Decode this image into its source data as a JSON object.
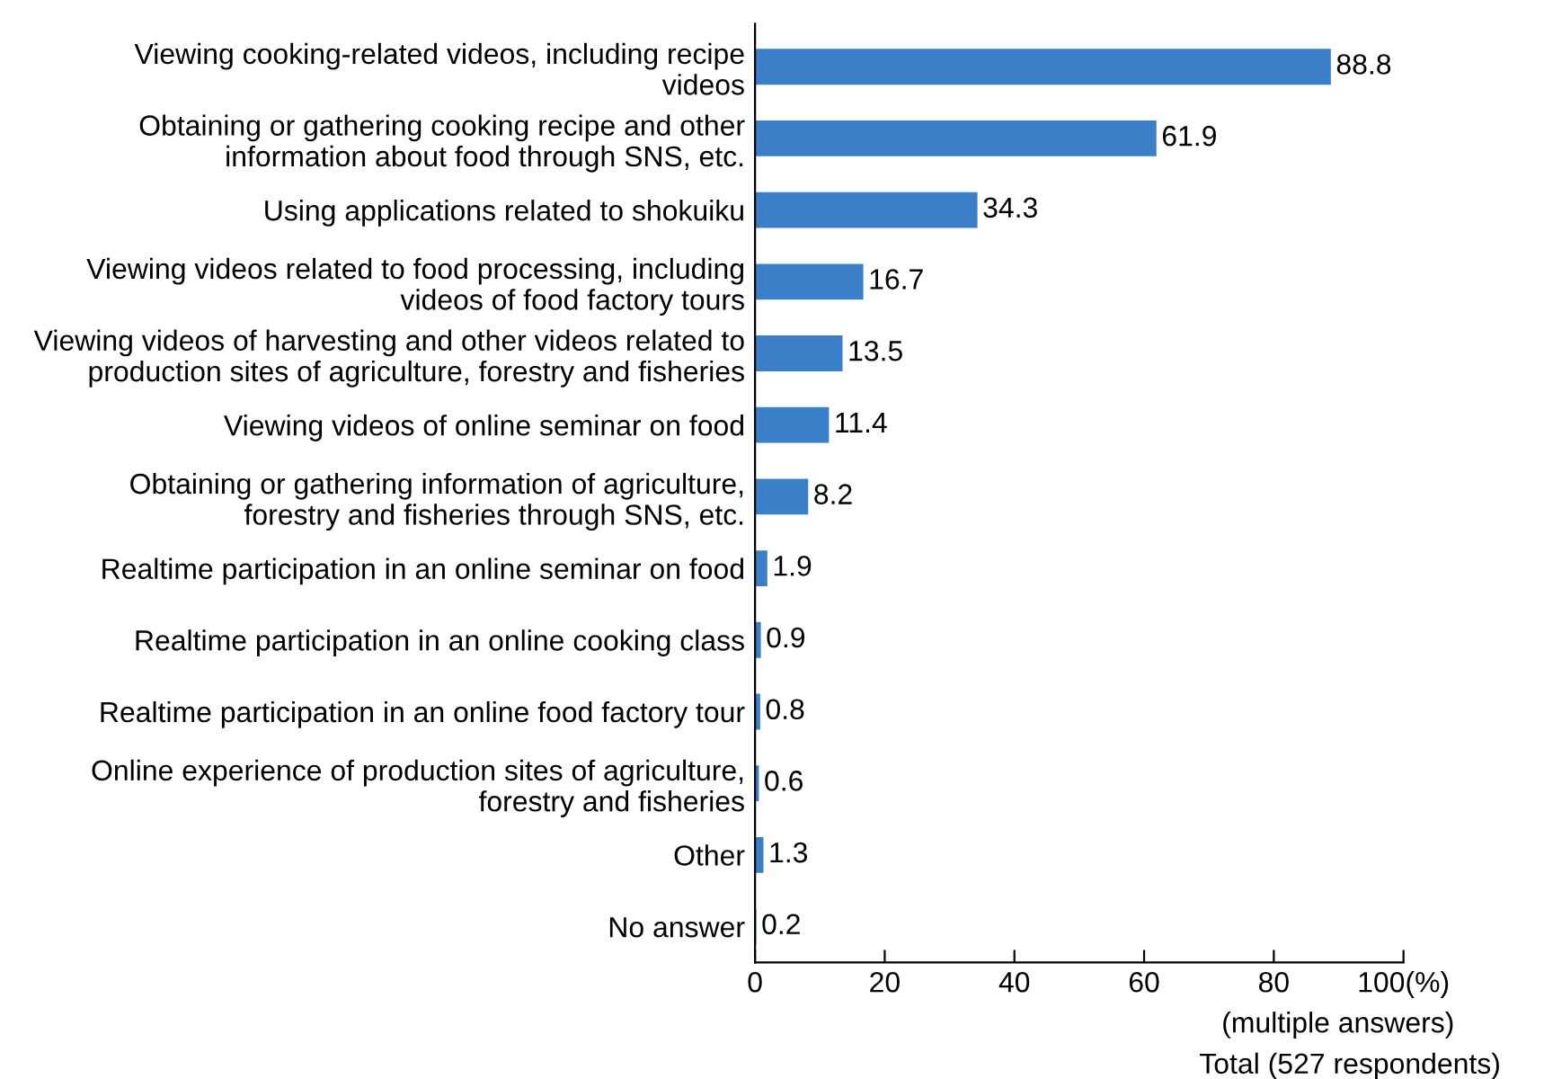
{
  "chart_data": {
    "type": "bar",
    "orientation": "horizontal",
    "categories": [
      "Viewing cooking-related videos, including recipe\nvideos",
      "Obtaining or gathering cooking recipe and other\ninformation about food through SNS, etc.",
      "Using applications related to shokuiku",
      "Viewing videos related to food processing, including\nvideos of food factory tours",
      "Viewing videos of harvesting and other videos related to\nproduction sites of agriculture, forestry and fisheries",
      "Viewing videos of online seminar on food",
      "Obtaining or gathering information of agriculture,\nforestry and fisheries through SNS, etc.",
      "Realtime participation in an online seminar on food",
      "Realtime participation in an online cooking class",
      "Realtime participation in an online food factory tour",
      "Online experience of production sites of agriculture,\nforestry and fisheries",
      "Other",
      "No answer"
    ],
    "values": [
      88.8,
      61.9,
      34.3,
      16.7,
      13.5,
      11.4,
      8.2,
      1.9,
      0.9,
      0.8,
      0.6,
      1.3,
      0.2
    ],
    "color": "#3b7fc8",
    "xlim": [
      0,
      100
    ],
    "xticks": [
      0,
      20,
      40,
      60,
      80,
      {
        "value": 100,
        "label": "100(%)"
      }
    ],
    "data_labels": true,
    "grid": false,
    "annotations": [
      "(multiple answers)",
      "Total (527 respondents)"
    ]
  }
}
